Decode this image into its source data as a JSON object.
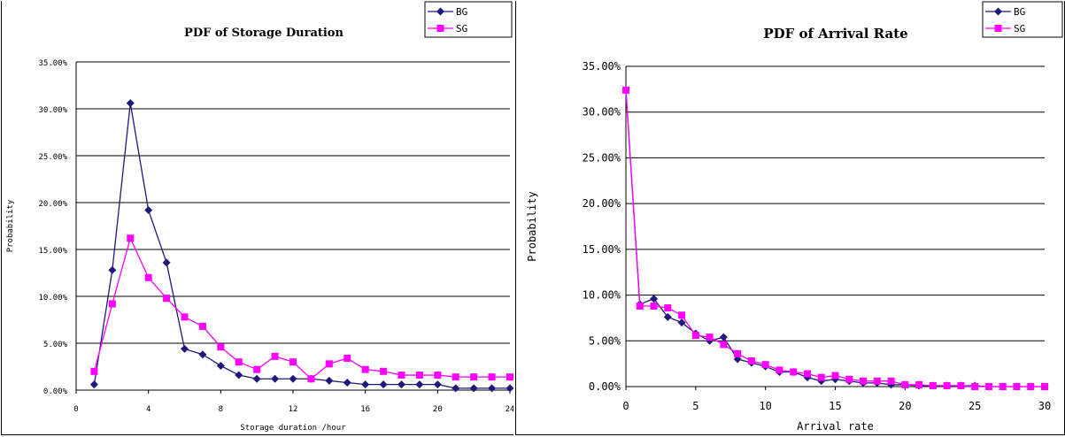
{
  "colors": {
    "bg": "#1f1a7a",
    "sg": "#ff00ff",
    "grid": "#000000"
  },
  "chart_data": [
    {
      "type": "line",
      "title": "PDF of Storage Duration",
      "xlabel": "Storage duration /hour",
      "ylabel": "Probability",
      "xlim": [
        0,
        24
      ],
      "ylim": [
        0,
        35
      ],
      "x_ticks": [
        "0",
        "4",
        "8",
        "12",
        "16",
        "20",
        "24"
      ],
      "y_ticks": [
        "0.00%",
        "5.00%",
        "10.00%",
        "15.00%",
        "20.00%",
        "25.00%",
        "30.00%",
        "35.00%"
      ],
      "legend_position": "top-right",
      "x": [
        1,
        2,
        3,
        4,
        5,
        6,
        7,
        8,
        9,
        10,
        11,
        12,
        13,
        14,
        15,
        16,
        17,
        18,
        19,
        20,
        21,
        22,
        23,
        24
      ],
      "series": [
        {
          "name": "BG",
          "marker": "diamond",
          "color_key": "bg",
          "values": [
            0.6,
            12.8,
            30.6,
            19.2,
            13.6,
            4.4,
            3.8,
            2.6,
            1.6,
            1.2,
            1.2,
            1.2,
            1.2,
            1.0,
            0.8,
            0.6,
            0.6,
            0.6,
            0.6,
            0.6,
            0.2,
            0.2,
            0.2,
            0.2
          ]
        },
        {
          "name": "SG",
          "marker": "square",
          "color_key": "sg",
          "values": [
            2.0,
            9.2,
            16.2,
            12.0,
            9.8,
            7.8,
            6.8,
            4.6,
            3.0,
            2.2,
            3.6,
            3.0,
            1.2,
            2.8,
            3.4,
            2.2,
            2.0,
            1.6,
            1.6,
            1.6,
            1.4,
            1.4,
            1.4,
            1.4
          ]
        }
      ]
    },
    {
      "type": "line",
      "title": "PDF of Arrival Rate",
      "xlabel": "Arrival rate",
      "ylabel": "Probability",
      "xlim": [
        0,
        30
      ],
      "ylim": [
        0,
        35
      ],
      "x_ticks": [
        "0",
        "5",
        "10",
        "15",
        "20",
        "25",
        "30"
      ],
      "y_ticks": [
        "0.00%",
        "5.00%",
        "10.00%",
        "15.00%",
        "20.00%",
        "25.00%",
        "30.00%",
        "35.00%"
      ],
      "legend_position": "top-right",
      "x": [
        0,
        1,
        2,
        3,
        4,
        5,
        6,
        7,
        8,
        9,
        10,
        11,
        12,
        13,
        14,
        15,
        16,
        17,
        18,
        19,
        20,
        21,
        22,
        23,
        24,
        25,
        26,
        27,
        28,
        29,
        30
      ],
      "series": [
        {
          "name": "BG",
          "marker": "diamond",
          "color_key": "bg",
          "values": [
            32.4,
            9.0,
            9.6,
            7.6,
            7.0,
            5.8,
            5.0,
            5.4,
            3.0,
            2.6,
            2.2,
            1.6,
            1.6,
            1.0,
            0.6,
            0.8,
            0.6,
            0.4,
            0.4,
            0.2,
            0.2,
            0.1,
            0.1,
            0.1,
            0.1,
            0.1,
            0.0,
            0.0,
            0.0,
            0.0,
            0.0
          ]
        },
        {
          "name": "SG",
          "marker": "square",
          "color_key": "sg",
          "values": [
            32.4,
            8.8,
            8.8,
            8.6,
            7.8,
            5.6,
            5.4,
            4.6,
            3.6,
            2.8,
            2.4,
            1.8,
            1.6,
            1.4,
            1.0,
            1.2,
            0.8,
            0.6,
            0.6,
            0.6,
            0.2,
            0.2,
            0.1,
            0.1,
            0.1,
            0.0,
            0.0,
            0.0,
            0.0,
            0.0,
            0.0
          ]
        }
      ]
    }
  ]
}
